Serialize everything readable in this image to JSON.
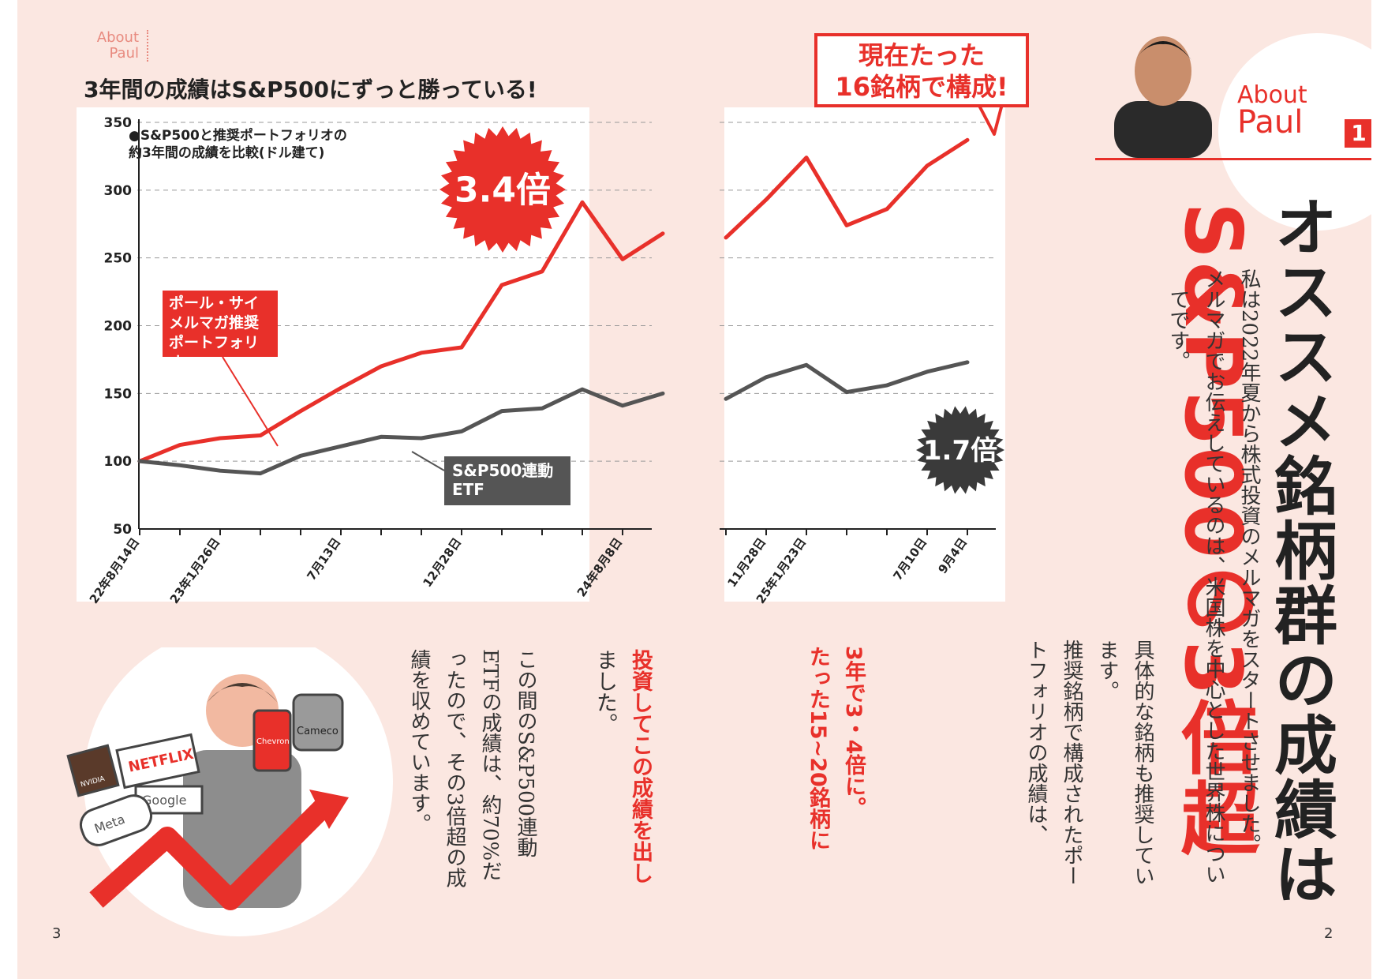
{
  "left_page": {
    "about_tag": [
      "About",
      "Paul"
    ],
    "chart_title": "3年間の成績はS&P500にずっと勝っている!",
    "chart_note": [
      "●S&P500と推奨ポートフォリオの",
      "約3年間の成績を比較(ドル建て)"
    ],
    "red_series_label": [
      "ポール・サイ",
      "メルマガ推奨",
      "ポートフォリオ"
    ],
    "gray_series_label": [
      "S&P500連動",
      "ETF"
    ],
    "badge_red": "3.4倍",
    "badge_dark": "1.7倍",
    "callout": [
      "現在たった",
      "16銘柄で構成!"
    ],
    "body_lines": [
      "この間のS&P500連動",
      "ETFの成績は、約70%だ",
      "ったので、その3倍超の成",
      "績を収めています。"
    ],
    "body_first": [
      "投資してこの成績を出し",
      "ました。"
    ],
    "page_number": "3",
    "illustration_logos": [
      "NETFLIX",
      "Google",
      "Meta",
      "NVIDIA",
      "Cameco",
      "Chevron"
    ]
  },
  "right_page": {
    "about_label": "About",
    "about_name": "Paul",
    "about_number": "1",
    "headline_black": "オススメ銘柄群の成績は",
    "headline_red": "S&P500の3倍超",
    "body_lines": [
      "私は2022年夏から株式投資のメルマガをスタートさせました。",
      "メルマガでお伝えしているのは、米国株を中心とした世界株につい",
      "てです。",
      "具体的な銘柄も推奨してい",
      "ます。",
      "推奨銘柄で構成されたポー",
      "トフォリオの成績は、"
    ],
    "emphasis_lines": [
      "3年で3・4倍に。",
      "たった15~20銘柄に"
    ],
    "page_number": "2"
  },
  "colors": {
    "page_bg": "#fbe7e1",
    "accent_red": "#e8302a",
    "series_gray": "#555555",
    "text": "#222222"
  },
  "chart_data": {
    "type": "line",
    "title": "3年間の成績はS&P500にずっと勝っている!",
    "ylim": [
      50,
      350
    ],
    "y_ticks": [
      350,
      300,
      250,
      200,
      150,
      100,
      50
    ],
    "x_tick_labels": [
      "22年8月14日",
      "23年1月26日",
      "7月13日",
      "12月28日",
      "24年8月8日",
      "11月28日",
      "25年1月23日",
      "7月10日",
      "9月4日"
    ],
    "grid": true,
    "axis_break": "between 24年8月8日 and 11月28日",
    "series": [
      {
        "name": "ポール・サイ メルマガ推奨ポートフォリオ",
        "color": "#e8302a",
        "segments": [
          [
            100,
            112,
            117,
            119,
            137,
            154,
            170,
            180,
            184,
            230,
            240,
            291,
            249,
            268
          ],
          [
            265,
            293,
            324,
            274,
            286,
            318,
            337
          ]
        ]
      },
      {
        "name": "S&P500連動ETF",
        "color": "#555555",
        "segments": [
          [
            100,
            97,
            93,
            91,
            104,
            111,
            118,
            117,
            122,
            137,
            139,
            153,
            141,
            150
          ],
          [
            146,
            162,
            171,
            151,
            156,
            166,
            173
          ]
        ]
      }
    ]
  }
}
